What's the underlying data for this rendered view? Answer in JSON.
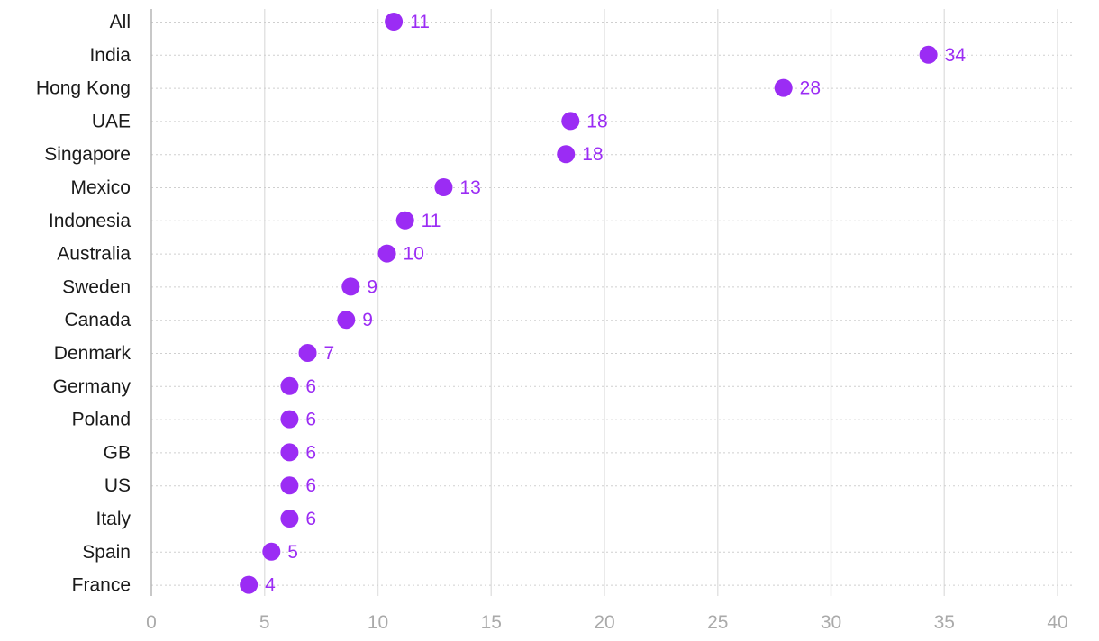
{
  "chart_data": {
    "type": "scatter",
    "orientation": "horizontal-dot-plot",
    "title": "",
    "xlabel": "",
    "ylabel": "",
    "xlim": [
      0,
      40
    ],
    "x_ticks": [
      0,
      5,
      10,
      15,
      20,
      25,
      30,
      35,
      40
    ],
    "grid": true,
    "legend": "none",
    "categories": [
      "All",
      "India",
      "Hong Kong",
      "UAE",
      "Singapore",
      "Mexico",
      "Indonesia",
      "Australia",
      "Sweden",
      "Canada",
      "Denmark",
      "Germany",
      "Poland",
      "GB",
      "US",
      "Italy",
      "Spain",
      "France"
    ],
    "values": [
      10.7,
      34.3,
      27.9,
      18.5,
      18.3,
      12.9,
      11.2,
      10.4,
      8.8,
      8.6,
      6.9,
      6.1,
      6.1,
      6.1,
      6.1,
      6.1,
      5.3,
      4.3
    ],
    "data_labels": [
      "11",
      "34",
      "28",
      "18",
      "18",
      "13",
      "11",
      "10",
      "9",
      "9",
      "7",
      "6",
      "6",
      "6",
      "6",
      "6",
      "5",
      "4"
    ],
    "colors": {
      "dot": "#9b2cf4",
      "label": "#9b2cf4"
    }
  }
}
